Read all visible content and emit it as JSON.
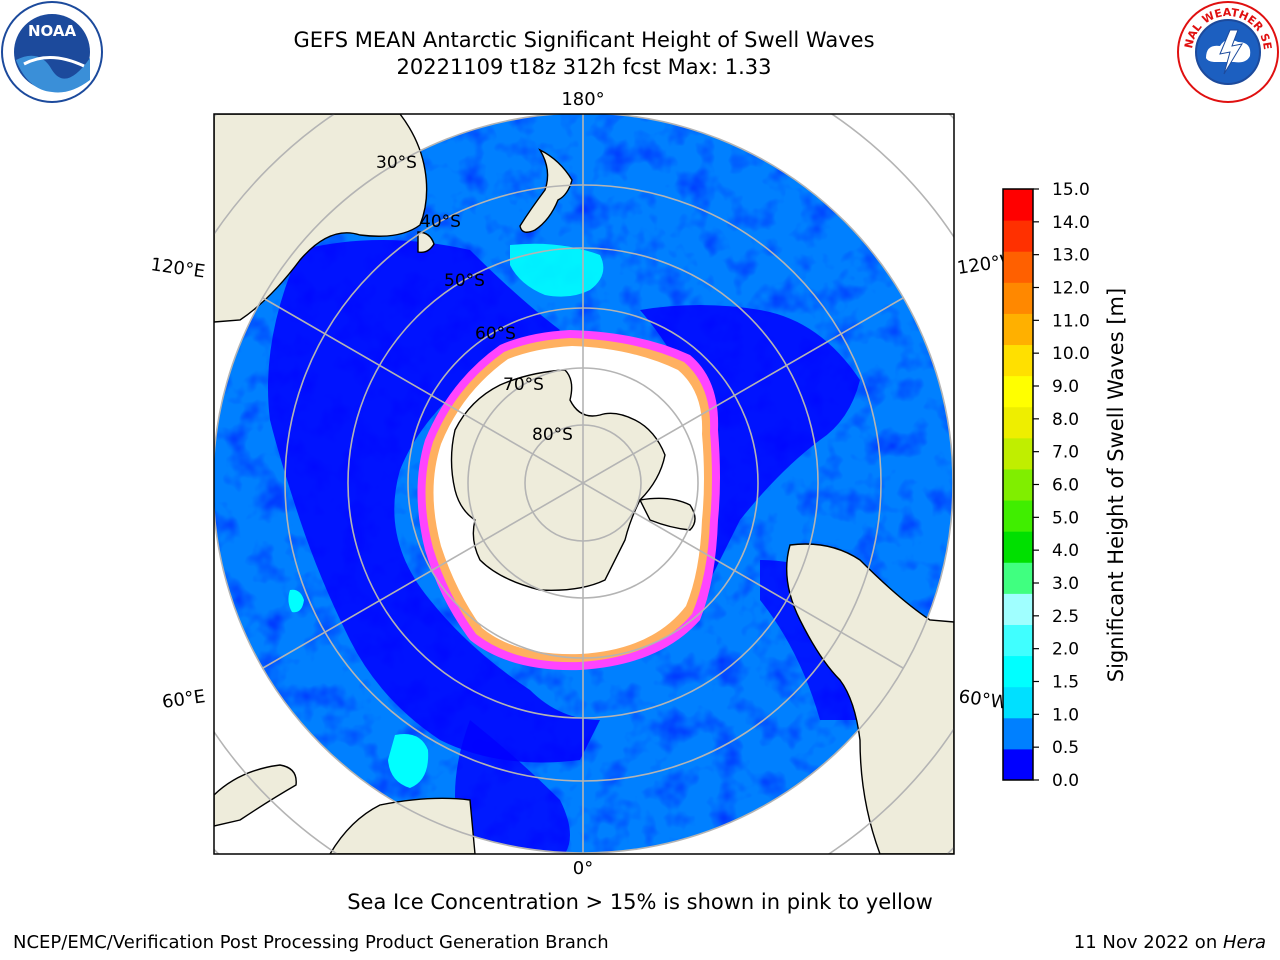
{
  "header": {
    "title_line1": "GEFS MEAN Antarctic Significant Height of Swell Waves",
    "title_line2": "20221109 t18z 312h fcst   Max: 1.33"
  },
  "logos": {
    "left": {
      "name": "noaa-logo",
      "text": "NOAA",
      "ring_text": "NATIONAL OCEANIC AND ATMOSPHERIC ADMINISTRATION · U.S. DEPARTMENT OF COMMERCE"
    },
    "right": {
      "name": "nws-logo",
      "ring_text": "NATIONAL WEATHER SERVICE"
    }
  },
  "map": {
    "projection": "south-polar-stereographic",
    "lon_labels": {
      "top": "180°",
      "bottom": "0°",
      "upper_left": "120°E",
      "upper_right": "120°W",
      "lower_left": "60°E",
      "lower_right": "60°W"
    },
    "lat_labels": [
      "30°S",
      "40°S",
      "50°S",
      "60°S",
      "70°S",
      "80°S"
    ],
    "colors": {
      "land": "#eeecdb",
      "ocean_low": "#0000ff",
      "ocean_mid": "#0080ff",
      "swell_cyan": "#00ffff",
      "sea_ice_edge": "#ff33ff",
      "sea_ice_inner": "#ffb060",
      "grid": "#b4b4b4"
    }
  },
  "colorbar": {
    "label": "Significant Height of Swell Waves [m]",
    "ticks": [
      "0.0",
      "0.5",
      "1.0",
      "1.5",
      "2.0",
      "2.5",
      "3.0",
      "4.0",
      "5.0",
      "6.0",
      "7.0",
      "8.0",
      "9.0",
      "10.0",
      "11.0",
      "12.0",
      "13.0",
      "14.0",
      "15.0"
    ],
    "colors": [
      "#0000ff",
      "#0080ff",
      "#00e0ff",
      "#00ffff",
      "#40ffff",
      "#a0ffff",
      "#40ff80",
      "#00e000",
      "#40ee00",
      "#80ee00",
      "#c0ee00",
      "#eeee00",
      "#ffff00",
      "#ffe000",
      "#ffb000",
      "#ff8800",
      "#ff6000",
      "#ff3000",
      "#ff0000"
    ]
  },
  "caption": "Sea Ice Concentration > 15% is shown in pink to yellow",
  "footer": {
    "left": "NCEP/EMC/Verification Post Processing Product Generation Branch",
    "right_prefix": "11 Nov 2022 on ",
    "right_host": "Hera"
  }
}
